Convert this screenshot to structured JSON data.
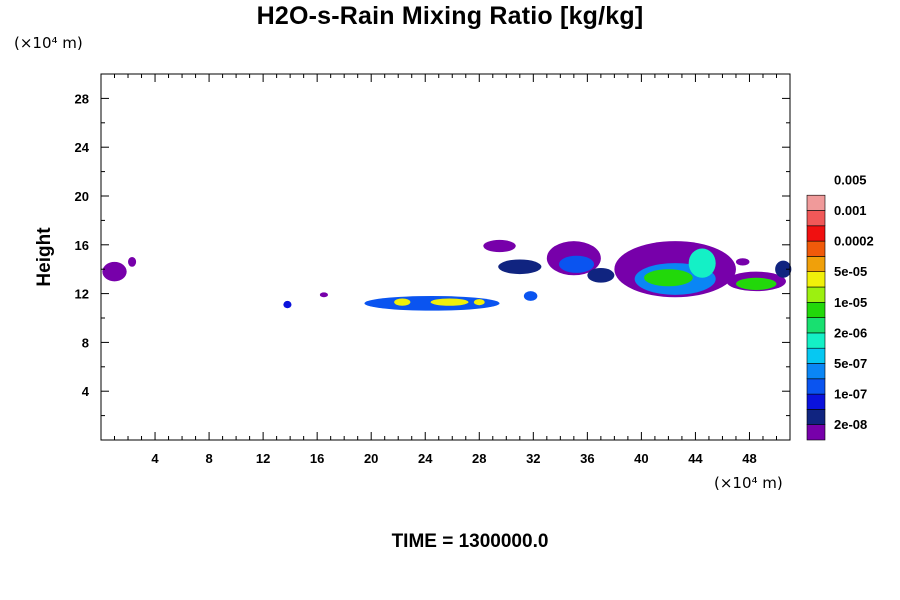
{
  "chart_data": {
    "type": "heatmap",
    "title": "H2O-s-Rain Mixing Ratio [kg/kg]",
    "ylabel": "Height",
    "x_unit": "(×10⁴ m)",
    "y_unit": "(×10⁴ m)",
    "xlim": [
      0,
      51
    ],
    "ylim": [
      0,
      30
    ],
    "x_ticks": [
      4,
      8,
      12,
      16,
      20,
      24,
      28,
      32,
      36,
      40,
      44,
      48
    ],
    "y_ticks": [
      4,
      8,
      12,
      16,
      20,
      24,
      28
    ],
    "time_label": "TIME = 1300000.0",
    "colorbar": {
      "colors": [
        "#7700aa",
        "#102480",
        "#0a12dc",
        "#0a54f0",
        "#0a86f5",
        "#06c8f2",
        "#14f0c6",
        "#18e070",
        "#22d80a",
        "#9cf010",
        "#f0f00a",
        "#f0a00a",
        "#f05a0a",
        "#f01010",
        "#f05858",
        "#f09a9a"
      ],
      "labels": [
        "2e-08",
        "1e-07",
        "5e-07",
        "2e-06",
        "1e-05",
        "5e-05",
        "0.0002",
        "0.001",
        "0.005"
      ]
    },
    "regions": [
      {
        "x": 1.0,
        "y": 13.8,
        "rx": 0.9,
        "ry": 0.8,
        "level": 0
      },
      {
        "x": 2.3,
        "y": 14.6,
        "rx": 0.3,
        "ry": 0.4,
        "level": 0
      },
      {
        "x": 1.4,
        "y": 14.1,
        "rx": 0.2,
        "ry": 0.2,
        "level": 0
      },
      {
        "x": 13.8,
        "y": 11.1,
        "rx": 0.3,
        "ry": 0.3,
        "level": 2
      },
      {
        "x": 16.5,
        "y": 11.9,
        "rx": 0.3,
        "ry": 0.2,
        "level": 0
      },
      {
        "x": 24.5,
        "y": 11.2,
        "rx": 5.0,
        "ry": 0.6,
        "level": 3
      },
      {
        "x": 22.3,
        "y": 11.3,
        "rx": 0.6,
        "ry": 0.3,
        "level": 10
      },
      {
        "x": 25.8,
        "y": 11.3,
        "rx": 1.4,
        "ry": 0.3,
        "level": 10
      },
      {
        "x": 28.0,
        "y": 11.3,
        "rx": 0.4,
        "ry": 0.25,
        "level": 10
      },
      {
        "x": 31.8,
        "y": 11.8,
        "rx": 0.5,
        "ry": 0.4,
        "level": 3
      },
      {
        "x": 29.5,
        "y": 15.9,
        "rx": 1.2,
        "ry": 0.5,
        "level": 0
      },
      {
        "x": 31.0,
        "y": 14.2,
        "rx": 1.6,
        "ry": 0.6,
        "level": 1
      },
      {
        "x": 35.0,
        "y": 14.9,
        "rx": 2.0,
        "ry": 1.4,
        "level": 0
      },
      {
        "x": 35.2,
        "y": 14.4,
        "rx": 1.3,
        "ry": 0.7,
        "level": 3
      },
      {
        "x": 37.0,
        "y": 13.5,
        "rx": 1.0,
        "ry": 0.6,
        "level": 1
      },
      {
        "x": 42.5,
        "y": 14.0,
        "rx": 4.5,
        "ry": 2.3,
        "level": 0
      },
      {
        "x": 42.5,
        "y": 13.2,
        "rx": 3.0,
        "ry": 1.3,
        "level": 4
      },
      {
        "x": 42.0,
        "y": 13.3,
        "rx": 1.8,
        "ry": 0.7,
        "level": 8
      },
      {
        "x": 44.5,
        "y": 14.5,
        "rx": 1.0,
        "ry": 1.2,
        "level": 6
      },
      {
        "x": 48.5,
        "y": 13.0,
        "rx": 2.2,
        "ry": 0.8,
        "level": 0
      },
      {
        "x": 48.5,
        "y": 12.8,
        "rx": 1.5,
        "ry": 0.5,
        "level": 8
      },
      {
        "x": 50.5,
        "y": 14.0,
        "rx": 0.6,
        "ry": 0.7,
        "level": 1
      },
      {
        "x": 47.5,
        "y": 14.6,
        "rx": 0.5,
        "ry": 0.3,
        "level": 0
      }
    ]
  }
}
